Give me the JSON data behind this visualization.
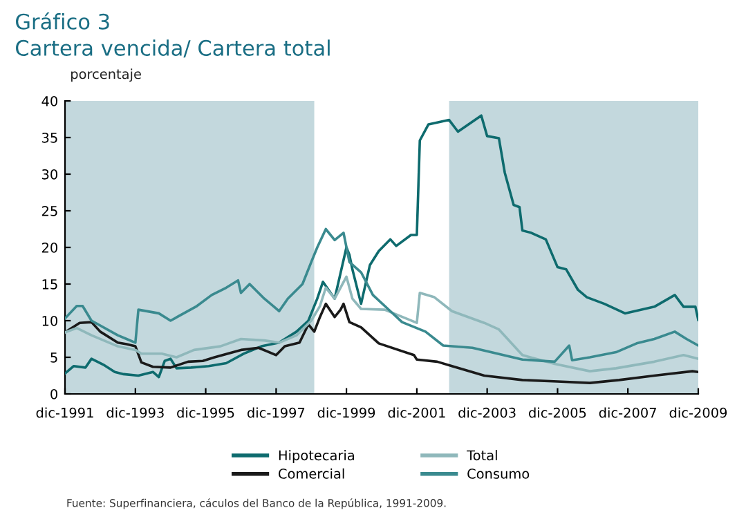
{
  "chart_data": {
    "type": "line",
    "title": "Gráfico 3",
    "subtitle": "Cartera vencida/ Cartera total",
    "ylabel": "porcentaje",
    "xlim": [
      "1991-12",
      "2009-12"
    ],
    "xticks": [
      {
        "value": "1991-12",
        "label": "dic-1991"
      },
      {
        "value": "1993-12",
        "label": "dic-1993"
      },
      {
        "value": "1995-12",
        "label": "dic-1995"
      },
      {
        "value": "1997-12",
        "label": "dic-1997"
      },
      {
        "value": "1999-12",
        "label": "dic-1999"
      },
      {
        "value": "2001-12",
        "label": "dic-2001"
      },
      {
        "value": "2003-12",
        "label": "dic-2003"
      },
      {
        "value": "2005-12",
        "label": "dic-2005"
      },
      {
        "value": "2007-12",
        "label": "dic-2007"
      },
      {
        "value": "2009-12",
        "label": "dic-2009"
      }
    ],
    "ylim": [
      0,
      40
    ],
    "yticks": [
      0,
      5,
      10,
      15,
      20,
      25,
      30,
      35,
      40
    ],
    "legend": "bottom",
    "bands": [
      {
        "axis": "x",
        "from": "1991-12",
        "to": "1999-01",
        "color": "#c3d8dd"
      },
      {
        "axis": "x",
        "from": "2002-11",
        "to": "2009-12",
        "color": "#c3d8dd"
      }
    ],
    "series": [
      {
        "name": "Hipotecaria",
        "color": "#0e6b6e",
        "x": [
          "1991-12",
          "1992-03",
          "1992-07",
          "1992-09",
          "1993-01",
          "1993-05",
          "1993-08",
          "1994-01",
          "1994-06",
          "1994-08",
          "1994-10",
          "1994-12",
          "1995-02",
          "1995-07",
          "1996-01",
          "1996-07",
          "1997-01",
          "1997-07",
          "1998-01",
          "1998-07",
          "1998-11",
          "1999-02",
          "1999-04",
          "1999-08",
          "1999-12",
          "2000-01",
          "2000-02",
          "2000-05",
          "2000-08",
          "2000-11",
          "2001-03",
          "2001-05",
          "2001-10",
          "2001-12",
          "2002-01",
          "2002-04",
          "2002-11",
          "2003-02",
          "2003-10",
          "2003-12",
          "2004-04",
          "2004-06",
          "2004-09",
          "2004-11",
          "2004-12",
          "2005-03",
          "2005-08",
          "2005-12",
          "2006-03",
          "2006-07",
          "2006-10",
          "2007-04",
          "2007-11",
          "2008-09",
          "2009-04",
          "2009-07",
          "2009-11",
          "2009-12"
        ],
        "values": [
          2.8,
          3.8,
          3.6,
          4.8,
          4.0,
          3.0,
          2.7,
          2.5,
          3.0,
          2.3,
          4.5,
          4.8,
          3.5,
          3.6,
          3.8,
          4.2,
          5.5,
          6.5,
          7.0,
          8.5,
          10.0,
          13.0,
          15.3,
          13.0,
          20.0,
          19.0,
          17.0,
          12.3,
          17.6,
          19.5,
          21.1,
          20.2,
          21.7,
          21.7,
          34.6,
          36.8,
          37.4,
          35.8,
          38.0,
          35.2,
          34.9,
          30.2,
          25.8,
          25.5,
          22.3,
          22.0,
          21.1,
          17.3,
          17.0,
          14.2,
          13.2,
          12.3,
          11.0,
          11.9,
          13.5,
          11.9,
          11.9,
          10.1
        ]
      },
      {
        "name": "Comercial",
        "color": "#1a1a1a",
        "x": [
          "1991-12",
          "1992-05",
          "1992-09",
          "1992-12",
          "1993-06",
          "1993-09",
          "1993-12",
          "1994-02",
          "1994-06",
          "1994-12",
          "1995-06",
          "1995-11",
          "1996-03",
          "1996-12",
          "1997-06",
          "1997-12",
          "1998-03",
          "1998-08",
          "1998-11",
          "1999-01",
          "1999-03",
          "1999-05",
          "1999-08",
          "1999-10",
          "1999-11",
          "2000-01",
          "2000-05",
          "2000-11",
          "2001-11",
          "2001-12",
          "2002-07",
          "2002-12",
          "2003-11",
          "2004-12",
          "2005-12",
          "2006-11",
          "2007-09",
          "2008-09",
          "2009-10",
          "2009-12"
        ],
        "values": [
          8.4,
          9.7,
          9.8,
          8.5,
          7.0,
          6.8,
          6.5,
          4.3,
          3.7,
          3.6,
          4.4,
          4.5,
          5.0,
          6.0,
          6.3,
          5.3,
          6.5,
          7.0,
          9.5,
          8.5,
          10.5,
          12.3,
          10.5,
          11.5,
          12.3,
          9.8,
          9.1,
          6.9,
          5.3,
          4.7,
          4.4,
          3.8,
          2.5,
          1.9,
          1.7,
          1.5,
          1.9,
          2.5,
          3.1,
          3.0
        ]
      },
      {
        "name": "Total",
        "color": "#8fb8bb",
        "x": [
          "1991-12",
          "1992-04",
          "1992-09",
          "1993-06",
          "1993-12",
          "1994-02",
          "1994-09",
          "1995-02",
          "1995-08",
          "1996-05",
          "1996-12",
          "1997-08",
          "1998-01",
          "1998-07",
          "1998-12",
          "1999-03",
          "1999-05",
          "1999-08",
          "1999-12",
          "2000-02",
          "2000-05",
          "2001-01",
          "2001-12",
          "2002-01",
          "2002-06",
          "2002-12",
          "2003-11",
          "2004-04",
          "2004-12",
          "2005-11",
          "2006-11",
          "2007-08",
          "2008-09",
          "2009-07",
          "2009-12"
        ],
        "values": [
          8.4,
          9.0,
          8.0,
          6.5,
          6.0,
          5.5,
          5.5,
          5.0,
          6.0,
          6.5,
          7.5,
          7.3,
          7.0,
          8.0,
          10.0,
          12.0,
          14.5,
          13.0,
          16.0,
          13.0,
          11.6,
          11.5,
          9.7,
          13.8,
          13.2,
          11.3,
          9.7,
          8.8,
          5.3,
          4.1,
          3.1,
          3.5,
          4.4,
          5.3,
          4.8
        ]
      },
      {
        "name": "Consumo",
        "color": "#3a8a8f",
        "x": [
          "1991-12",
          "1992-04",
          "1992-06",
          "1992-09",
          "1993-06",
          "1993-09",
          "1993-12",
          "1994-01",
          "1994-08",
          "1994-12",
          "1995-09",
          "1996-02",
          "1996-07",
          "1996-11",
          "1996-12",
          "1997-03",
          "1997-08",
          "1997-11",
          "1998-01",
          "1998-04",
          "1998-09",
          "1998-12",
          "1999-02",
          "1999-05",
          "1999-08",
          "1999-11",
          "2000-01",
          "2000-05",
          "2000-09",
          "2001-03",
          "2001-07",
          "2002-03",
          "2002-09",
          "2003-07",
          "2004-12",
          "2005-11",
          "2006-04",
          "2006-05",
          "2006-11",
          "2007-08",
          "2008-03",
          "2008-09",
          "2009-04",
          "2009-08",
          "2009-12"
        ],
        "values": [
          10.3,
          12.0,
          12.0,
          10.0,
          8.0,
          7.5,
          7.0,
          11.5,
          11.0,
          10.0,
          12.0,
          13.5,
          14.5,
          15.5,
          13.8,
          15.0,
          13.0,
          12.0,
          11.3,
          13.0,
          15.0,
          18.0,
          20.0,
          22.5,
          21.0,
          22.0,
          18.0,
          16.6,
          13.5,
          11.3,
          9.8,
          8.5,
          6.6,
          6.3,
          4.7,
          4.4,
          6.6,
          4.6,
          5.0,
          5.7,
          6.9,
          7.5,
          8.5,
          7.5,
          6.6
        ]
      }
    ],
    "annotations": [
      "Fuente: Superfinanciera, cáculos del Banco de la República, 1991-2009."
    ]
  }
}
